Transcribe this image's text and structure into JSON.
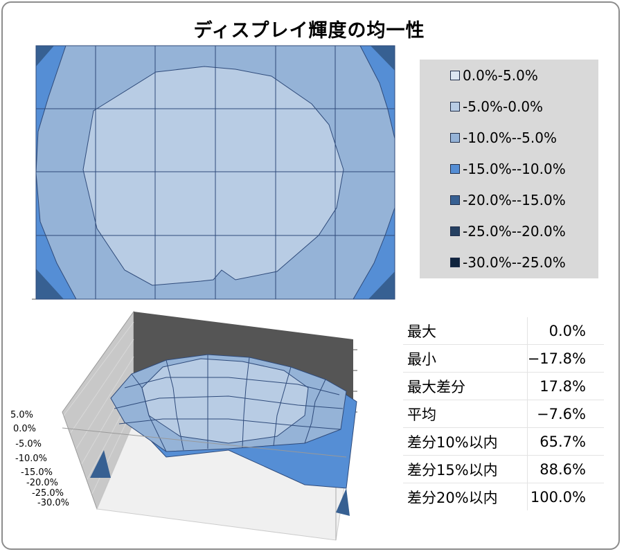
{
  "title": "ディスプレイ輝度の均一性",
  "colors": {
    "band_0_5": "#dce6f2",
    "band_m5_0": "#b8cce4",
    "band_m10_m5": "#95b3d7",
    "band_m15_m10": "#558ed5",
    "band_m20_m15": "#376092",
    "band_m25_m20": "#254061",
    "band_m30_m25": "#10243e",
    "grid_line": "#2e4a7a"
  },
  "legend": {
    "items": [
      {
        "label": "0.0%-5.0%",
        "color": "#dce6f2"
      },
      {
        "label": "-5.0%-0.0%",
        "color": "#b8cce4"
      },
      {
        "label": "-10.0%--5.0%",
        "color": "#95b3d7"
      },
      {
        "label": "-15.0%--10.0%",
        "color": "#558ed5"
      },
      {
        "label": "-20.0%--15.0%",
        "color": "#376092"
      },
      {
        "label": "-25.0%--20.0%",
        "color": "#254061"
      },
      {
        "label": "-30.0%--25.0%",
        "color": "#10243e"
      }
    ]
  },
  "chart_data": [
    {
      "type": "heatmap",
      "title": "ディスプレイ輝度の均一性",
      "grid": true,
      "legend": "right",
      "note": "contour map of relative luminance (%) over the display surface, 7 columns × 5 rows of measurement cells",
      "bands": [
        "0.0%-5.0%",
        "-5.0%-0.0%",
        "-10.0%--5.0%",
        "-15.0%--10.0%",
        "-20.0%--15.0%",
        "-25.0%--20.0%",
        "-30.0%--25.0%"
      ],
      "zlim": [
        -30,
        5
      ]
    },
    {
      "type": "surface",
      "z_tick_labels": [
        "5.0%",
        "0.0%",
        "-5.0%",
        "-10.0%",
        "-15.0%",
        "-20.0%",
        "-25.0%",
        "-30.0%"
      ],
      "zlim": [
        -30,
        5
      ],
      "grid": true
    }
  ],
  "stats": {
    "rows": [
      {
        "label": "最大",
        "value": "0.0%"
      },
      {
        "label": "最小",
        "value": "−17.8%"
      },
      {
        "label": "最大差分",
        "value": "17.8%"
      },
      {
        "label": "平均",
        "value": "−7.6%"
      },
      {
        "label": "差分10%以内",
        "value": "65.7%"
      },
      {
        "label": "差分15%以内",
        "value": "88.6%"
      },
      {
        "label": "差分20%以内",
        "value": "100.0%"
      }
    ]
  }
}
